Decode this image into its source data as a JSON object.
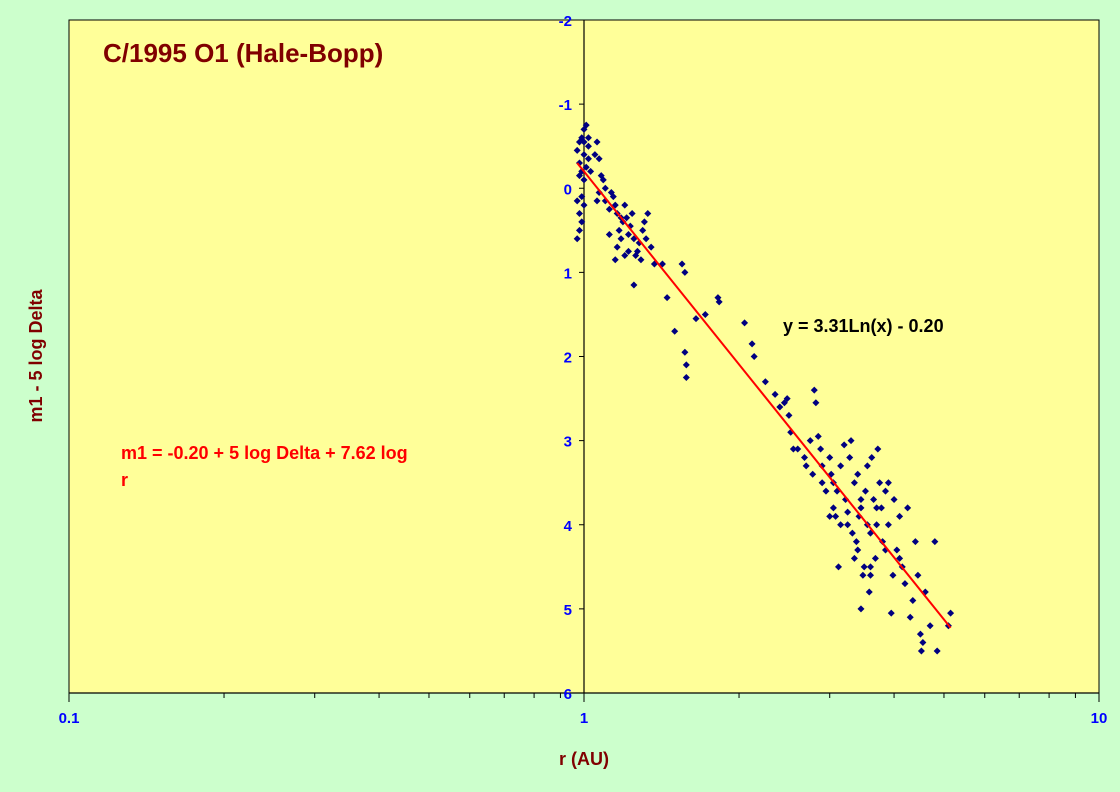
{
  "colors": {
    "background": "#ccffcc",
    "plot_area": "#ffff99",
    "points": "#000080",
    "trendline": "#ff0000",
    "title": "#800000",
    "ticks": "#0000ff",
    "equation_text": "#000000",
    "formula_text": "#ff0000"
  },
  "chart_data": {
    "type": "scatter",
    "title": "C/1995 O1 (Hale-Bopp)",
    "xlabel": "r (AU)",
    "ylabel": "m1 - 5 log Delta",
    "xscale": "log",
    "xlim": [
      0.1,
      10
    ],
    "ylim": [
      -2,
      6
    ],
    "y_inverted": true,
    "x_tick_labels": [
      "0.1",
      "1",
      "10"
    ],
    "y_tick_labels": [
      "-2",
      "-1",
      "0",
      "1",
      "2",
      "3",
      "4",
      "5",
      "6"
    ],
    "grid": false,
    "legend": "none",
    "trendline": {
      "equation_text": "y = 3.31Ln(x) - 0.20",
      "a": 3.31,
      "b": -0.2,
      "x_range": [
        0.97,
        5.15
      ]
    },
    "formula_annotation": [
      "m1 = -0.20 + 5 log Delta + 7.62 log",
      "r"
    ],
    "points": [
      [
        0.97,
        -0.45
      ],
      [
        0.98,
        -0.55
      ],
      [
        0.98,
        -0.3
      ],
      [
        0.98,
        -0.15
      ],
      [
        0.99,
        -0.6
      ],
      [
        0.99,
        -0.2
      ],
      [
        0.99,
        0.1
      ],
      [
        1.0,
        -0.7
      ],
      [
        1.0,
        -0.55
      ],
      [
        1.0,
        -0.4
      ],
      [
        1.01,
        -0.25
      ],
      [
        1.0,
        -0.1
      ],
      [
        1.01,
        -0.75
      ],
      [
        1.02,
        -0.6
      ],
      [
        1.02,
        -0.5
      ],
      [
        1.02,
        -0.35
      ],
      [
        1.03,
        -0.2
      ],
      [
        0.97,
        0.15
      ],
      [
        0.98,
        0.3
      ],
      [
        0.98,
        0.5
      ],
      [
        0.99,
        0.4
      ],
      [
        0.97,
        0.6
      ],
      [
        1.0,
        0.2
      ],
      [
        1.05,
        -0.4
      ],
      [
        1.06,
        -0.55
      ],
      [
        1.07,
        -0.35
      ],
      [
        1.08,
        -0.15
      ],
      [
        1.07,
        0.05
      ],
      [
        1.06,
        0.15
      ],
      [
        1.09,
        -0.1
      ],
      [
        1.1,
        0.0
      ],
      [
        1.1,
        0.15
      ],
      [
        1.12,
        0.25
      ],
      [
        1.13,
        0.05
      ],
      [
        1.14,
        0.1
      ],
      [
        1.15,
        0.2
      ],
      [
        1.16,
        0.3
      ],
      [
        1.17,
        0.5
      ],
      [
        1.18,
        0.6
      ],
      [
        1.19,
        0.4
      ],
      [
        1.2,
        0.2
      ],
      [
        1.21,
        0.35
      ],
      [
        1.22,
        0.55
      ],
      [
        1.23,
        0.45
      ],
      [
        1.24,
        0.3
      ],
      [
        1.25,
        0.6
      ],
      [
        1.26,
        0.8
      ],
      [
        1.27,
        0.75
      ],
      [
        1.28,
        0.65
      ],
      [
        1.3,
        0.5
      ],
      [
        1.31,
        0.4
      ],
      [
        1.32,
        0.6
      ],
      [
        1.33,
        0.3
      ],
      [
        1.15,
        0.85
      ],
      [
        1.2,
        0.8
      ],
      [
        1.25,
        1.15
      ],
      [
        1.12,
        0.55
      ],
      [
        1.16,
        0.7
      ],
      [
        1.18,
        0.35
      ],
      [
        1.22,
        0.75
      ],
      [
        1.29,
        0.85
      ],
      [
        1.35,
        0.7
      ],
      [
        1.37,
        0.9
      ],
      [
        1.42,
        0.9
      ],
      [
        1.55,
        0.9
      ],
      [
        1.57,
        1.0
      ],
      [
        1.45,
        1.3
      ],
      [
        1.5,
        1.7
      ],
      [
        1.57,
        1.95
      ],
      [
        1.58,
        2.1
      ],
      [
        1.58,
        2.25
      ],
      [
        1.65,
        1.55
      ],
      [
        1.72,
        1.5
      ],
      [
        1.82,
        1.3
      ],
      [
        1.83,
        1.35
      ],
      [
        2.05,
        1.6
      ],
      [
        2.12,
        1.85
      ],
      [
        2.14,
        2.0
      ],
      [
        2.25,
        2.3
      ],
      [
        2.35,
        2.45
      ],
      [
        2.4,
        2.6
      ],
      [
        2.45,
        2.55
      ],
      [
        2.48,
        2.5
      ],
      [
        2.5,
        2.7
      ],
      [
        2.52,
        2.9
      ],
      [
        2.55,
        3.1
      ],
      [
        2.6,
        3.1
      ],
      [
        2.68,
        3.2
      ],
      [
        2.7,
        3.3
      ],
      [
        2.75,
        3.0
      ],
      [
        2.78,
        3.4
      ],
      [
        2.8,
        2.4
      ],
      [
        2.82,
        2.55
      ],
      [
        2.85,
        2.95
      ],
      [
        2.88,
        3.1
      ],
      [
        2.9,
        3.5
      ],
      [
        2.95,
        3.6
      ],
      [
        3.0,
        3.2
      ],
      [
        3.02,
        3.4
      ],
      [
        3.05,
        3.8
      ],
      [
        3.08,
        3.9
      ],
      [
        3.1,
        3.6
      ],
      [
        3.12,
        4.5
      ],
      [
        3.15,
        3.3
      ],
      [
        3.2,
        3.05
      ],
      [
        3.22,
        3.7
      ],
      [
        3.25,
        3.85
      ],
      [
        3.28,
        3.2
      ],
      [
        3.3,
        3.0
      ],
      [
        3.32,
        4.1
      ],
      [
        3.35,
        3.5
      ],
      [
        3.38,
        4.2
      ],
      [
        3.4,
        4.3
      ],
      [
        3.42,
        3.9
      ],
      [
        3.45,
        3.7
      ],
      [
        3.45,
        5.0
      ],
      [
        3.48,
        4.6
      ],
      [
        3.5,
        4.5
      ],
      [
        3.52,
        3.6
      ],
      [
        3.55,
        3.3
      ],
      [
        3.58,
        4.8
      ],
      [
        3.6,
        4.1
      ],
      [
        3.62,
        3.2
      ],
      [
        3.65,
        3.7
      ],
      [
        3.68,
        4.4
      ],
      [
        3.7,
        4.0
      ],
      [
        3.72,
        3.1
      ],
      [
        3.75,
        3.5
      ],
      [
        3.78,
        3.8
      ],
      [
        3.8,
        4.2
      ],
      [
        3.85,
        3.6
      ],
      [
        3.9,
        4.0
      ],
      [
        3.95,
        5.05
      ],
      [
        3.98,
        4.6
      ],
      [
        4.0,
        3.7
      ],
      [
        4.05,
        4.3
      ],
      [
        4.1,
        3.9
      ],
      [
        4.15,
        4.5
      ],
      [
        4.2,
        4.7
      ],
      [
        4.25,
        3.8
      ],
      [
        4.3,
        5.1
      ],
      [
        4.35,
        4.9
      ],
      [
        4.4,
        4.2
      ],
      [
        4.45,
        4.6
      ],
      [
        4.5,
        5.3
      ],
      [
        4.52,
        5.5
      ],
      [
        4.55,
        5.4
      ],
      [
        4.6,
        4.8
      ],
      [
        4.7,
        5.2
      ],
      [
        4.8,
        4.2
      ],
      [
        4.85,
        5.5
      ],
      [
        5.1,
        5.2
      ],
      [
        5.15,
        5.05
      ],
      [
        3.55,
        4.0
      ],
      [
        3.6,
        4.5
      ],
      [
        3.35,
        4.4
      ],
      [
        3.4,
        3.4
      ],
      [
        3.0,
        3.9
      ],
      [
        3.05,
        3.5
      ],
      [
        3.25,
        4.0
      ],
      [
        3.7,
        3.8
      ],
      [
        3.85,
        4.3
      ],
      [
        3.9,
        3.5
      ],
      [
        4.1,
        4.4
      ],
      [
        2.9,
        3.3
      ],
      [
        3.15,
        4.0
      ],
      [
        3.45,
        3.8
      ],
      [
        3.6,
        4.6
      ]
    ]
  }
}
